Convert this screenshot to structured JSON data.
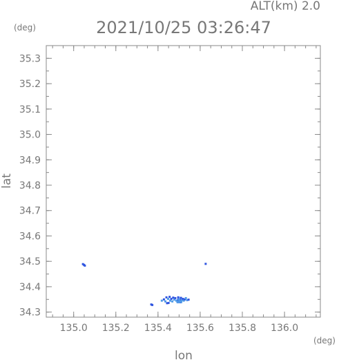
{
  "header": {
    "altitude": "ALT(km) 2.0",
    "timestamp": "2021/10/25 03:26:47"
  },
  "colors": {
    "axis": "#888888",
    "text": "#777777",
    "echo_dark": "#2f55e0",
    "echo_light": "#4f9be8"
  },
  "chart_data": {
    "type": "scatter",
    "xlabel": "lon",
    "ylabel": "lat",
    "x_unit": "(deg)",
    "y_unit": "(deg)",
    "xlim": [
      134.87,
      136.17
    ],
    "ylim": [
      34.28,
      35.35
    ],
    "x_ticks": [
      "135.0",
      "135.2",
      "135.4",
      "135.6",
      "135.8",
      "136.0"
    ],
    "y_ticks": [
      "34.3",
      "34.4",
      "34.5",
      "34.6",
      "34.7",
      "34.8",
      "34.9",
      "35.0",
      "35.1",
      "35.2",
      "35.3"
    ],
    "grid": false,
    "points": [
      {
        "x": 135.044,
        "y": 34.489,
        "c": "dark"
      },
      {
        "x": 135.049,
        "y": 34.486,
        "c": "dark"
      },
      {
        "x": 135.053,
        "y": 34.483,
        "c": "dark"
      },
      {
        "x": 135.626,
        "y": 34.49,
        "c": "dark"
      },
      {
        "x": 135.368,
        "y": 34.33,
        "c": "dark"
      },
      {
        "x": 135.373,
        "y": 34.328,
        "c": "dark"
      },
      {
        "x": 135.418,
        "y": 34.345,
        "c": "light"
      },
      {
        "x": 135.428,
        "y": 34.35,
        "c": "dark"
      },
      {
        "x": 135.435,
        "y": 34.342,
        "c": "light"
      },
      {
        "x": 135.44,
        "y": 34.358,
        "c": "dark"
      },
      {
        "x": 135.443,
        "y": 34.335,
        "c": "dark"
      },
      {
        "x": 135.448,
        "y": 34.352,
        "c": "light"
      },
      {
        "x": 135.45,
        "y": 34.336,
        "c": "dark"
      },
      {
        "x": 135.455,
        "y": 34.36,
        "c": "dark"
      },
      {
        "x": 135.458,
        "y": 34.345,
        "c": "light"
      },
      {
        "x": 135.463,
        "y": 34.352,
        "c": "dark"
      },
      {
        "x": 135.468,
        "y": 34.342,
        "c": "light"
      },
      {
        "x": 135.472,
        "y": 34.357,
        "c": "dark"
      },
      {
        "x": 135.477,
        "y": 34.349,
        "c": "light"
      },
      {
        "x": 135.482,
        "y": 34.355,
        "c": "dark"
      },
      {
        "x": 135.487,
        "y": 34.345,
        "c": "light"
      },
      {
        "x": 135.492,
        "y": 34.34,
        "c": "light"
      },
      {
        "x": 135.496,
        "y": 34.358,
        "c": "dark"
      },
      {
        "x": 135.5,
        "y": 34.35,
        "c": "light"
      },
      {
        "x": 135.505,
        "y": 34.342,
        "c": "light"
      },
      {
        "x": 135.509,
        "y": 34.356,
        "c": "dark"
      },
      {
        "x": 135.513,
        "y": 34.347,
        "c": "light"
      },
      {
        "x": 135.518,
        "y": 34.352,
        "c": "dark"
      },
      {
        "x": 135.522,
        "y": 34.345,
        "c": "light"
      },
      {
        "x": 135.527,
        "y": 34.35,
        "c": "dark"
      },
      {
        "x": 135.532,
        "y": 34.355,
        "c": "light"
      },
      {
        "x": 135.538,
        "y": 34.347,
        "c": "light"
      },
      {
        "x": 135.545,
        "y": 34.349,
        "c": "dark"
      }
    ],
    "echo_bars": [
      {
        "x0": 135.488,
        "x1": 135.515,
        "y0": 34.335,
        "y1": 34.35,
        "c": "light"
      },
      {
        "x0": 135.492,
        "x1": 135.497,
        "y0": 34.335,
        "y1": 34.362,
        "c": "dark"
      },
      {
        "x0": 135.503,
        "x1": 135.508,
        "y0": 34.335,
        "y1": 34.36,
        "c": "dark"
      }
    ]
  }
}
